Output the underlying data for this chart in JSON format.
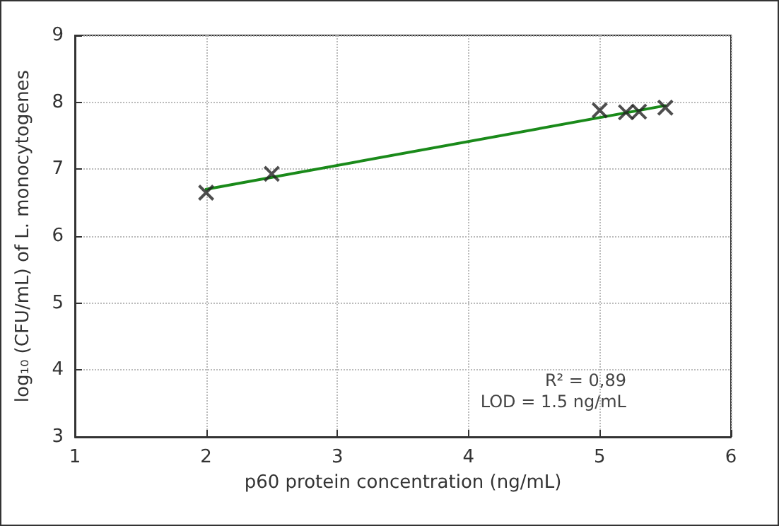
{
  "chart_data": {
    "type": "scatter",
    "xlabel": "p60 protein concentration (ng/mL)",
    "ylabel": "log₁₀ (CFU/mL) of L. monocytogenes",
    "series": [
      {
        "color": "#222222",
        "marker": "cross",
        "x": [
          2,
          2.5,
          5,
          5.2,
          5.3,
          5.5
        ],
        "values": [
          6.65,
          6.93,
          7.88,
          7.85,
          7.86,
          7.92
        ]
      },
      {
        "type": "line",
        "color": "#1a8a1a",
        "marker": "none",
        "line_style": "solid",
        "x": [
          2,
          5.5
        ],
        "values": [
          6.7,
          7.95
        ]
      }
    ],
    "xlim": [
      1,
      6
    ],
    "xticks": [
      1,
      2,
      3,
      4,
      5,
      6
    ],
    "ylim": [
      3,
      9
    ],
    "yticks": [
      3,
      4,
      5,
      6,
      7,
      8,
      9
    ],
    "grid": true,
    "annotations": [
      "R² = 0,89",
      "LOD = 1.5 ng/mL"
    ]
  }
}
